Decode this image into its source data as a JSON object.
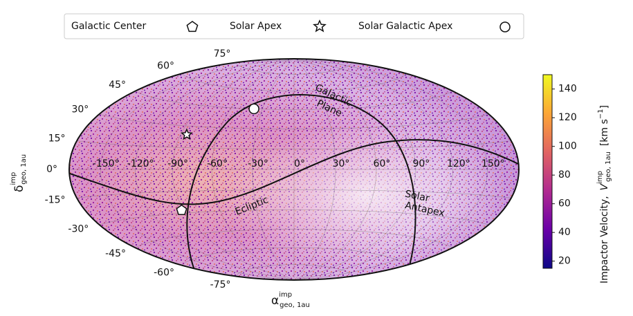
{
  "chart_data": {
    "type": "scatter",
    "projection": "hammer",
    "xlim": [
      -180,
      180
    ],
    "ylim": [
      -90,
      90
    ],
    "grid": true,
    "xticks": [
      {
        "value": -150,
        "label": "-150°"
      },
      {
        "value": -120,
        "label": "-120°"
      },
      {
        "value": -90,
        "label": "-90°"
      },
      {
        "value": -60,
        "label": "-60°"
      },
      {
        "value": -30,
        "label": "-30°"
      },
      {
        "value": 0,
        "label": "0°"
      },
      {
        "value": 30,
        "label": "30°"
      },
      {
        "value": 60,
        "label": "60°"
      },
      {
        "value": 90,
        "label": "90°"
      },
      {
        "value": 120,
        "label": "120°"
      },
      {
        "value": 150,
        "label": "150°"
      }
    ],
    "yticks": [
      {
        "value": -75,
        "label": "-75°"
      },
      {
        "value": -60,
        "label": "-60°"
      },
      {
        "value": -45,
        "label": "-45°"
      },
      {
        "value": -30,
        "label": "-30°"
      },
      {
        "value": -15,
        "label": "-15°"
      },
      {
        "value": 0,
        "label": "0°"
      },
      {
        "value": 15,
        "label": "15°"
      },
      {
        "value": 30,
        "label": "30°"
      },
      {
        "value": 45,
        "label": "45°"
      },
      {
        "value": 60,
        "label": "60°"
      },
      {
        "value": 75,
        "label": "75°"
      }
    ],
    "xlabel": {
      "symbol": "α",
      "sup": "imp",
      "sub": "geo, 1au"
    },
    "ylabel": {
      "symbol": "δ",
      "sup": "imp",
      "sub": "geo, 1au"
    },
    "series": [
      {
        "name": "Galactic Center",
        "marker": "pentagon",
        "color": "#ffffff",
        "x": [
          -92
        ],
        "y": [
          -28
        ]
      },
      {
        "name": "Solar Apex",
        "marker": "star",
        "color": "#ffffff",
        "x": [
          -85
        ],
        "y": [
          24
        ]
      },
      {
        "name": "Solar Galactic Apex",
        "marker": "circle",
        "color": "#ffffff",
        "x": [
          -38
        ],
        "y": [
          45
        ]
      }
    ],
    "annotations": [
      {
        "lines": [
          "Galactic",
          "Plane"
        ]
      },
      {
        "lines": [
          "Ecliptic"
        ]
      },
      {
        "lines": [
          "Solar",
          "Antapex"
        ]
      }
    ],
    "colorbar": {
      "cmap": "plasma",
      "clim": [
        15,
        150
      ],
      "ticks": [
        20,
        40,
        60,
        80,
        100,
        120,
        140
      ],
      "label": {
        "text": "Impactor Velocity,",
        "symbol": "V",
        "sup": "imp",
        "sub": "geo, 1au",
        "units": "[km s",
        "units_sup": "−1",
        "units_end": "]"
      }
    }
  }
}
